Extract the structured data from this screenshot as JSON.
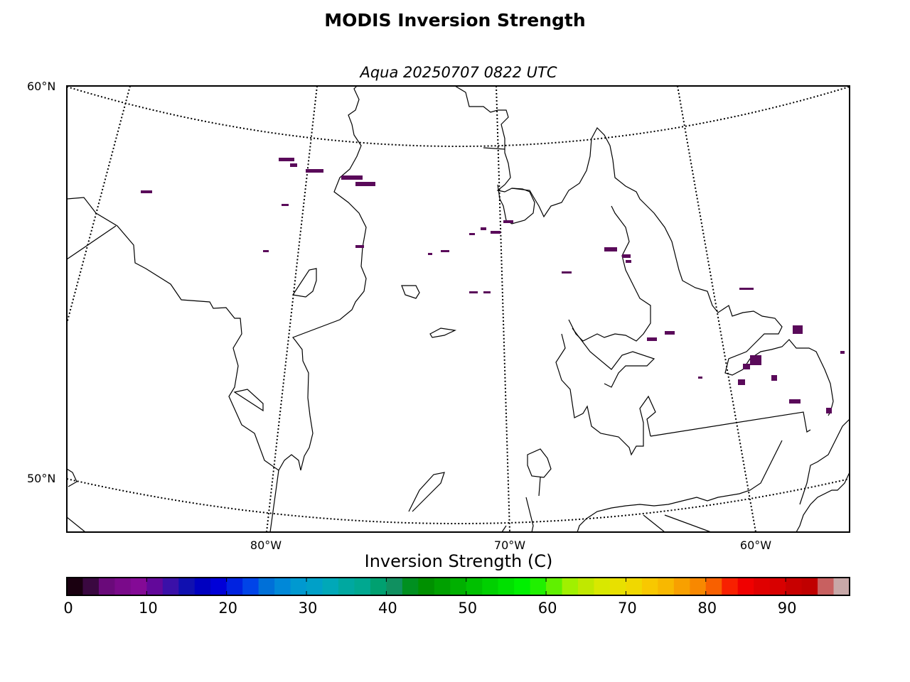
{
  "title": "MODIS Inversion Strength",
  "subtitle": "Aqua 20250707 0822 UTC",
  "map": {
    "lat_labels": [
      "60°N",
      "50°N"
    ],
    "lon_labels": [
      "80°W",
      "70°W",
      "60°W"
    ],
    "coastline_color": "#000000",
    "graticule_style": "dotted",
    "pixel_color": "#5a0a5a"
  },
  "colorbar": {
    "label": "Inversion Strength (C)",
    "range": [
      0,
      98
    ],
    "tick_labels": [
      "0",
      "10",
      "20",
      "30",
      "40",
      "50",
      "60",
      "70",
      "80",
      "90"
    ],
    "colors": [
      "#1a0010",
      "#3a0840",
      "#6a0a7a",
      "#7a0a8a",
      "#840a96",
      "#62089a",
      "#3a10a8",
      "#1010b0",
      "#0000c0",
      "#0000d8",
      "#0022e0",
      "#0044e8",
      "#0070d8",
      "#0088d8",
      "#0099d0",
      "#00a0c8",
      "#00a8b8",
      "#00a8a0",
      "#00a890",
      "#00a070",
      "#109060",
      "#009020",
      "#009000",
      "#00a000",
      "#00b000",
      "#00c000",
      "#00d000",
      "#00e000",
      "#00f000",
      "#20f000",
      "#60f000",
      "#a0f000",
      "#c0e800",
      "#d8e800",
      "#e8e000",
      "#f0d800",
      "#f8c800",
      "#f8b800",
      "#f8a000",
      "#f88800",
      "#f86000",
      "#f82000",
      "#f00000",
      "#e00000",
      "#d80000",
      "#c80000",
      "#c00000",
      "#c86060",
      "#c8a8a8"
    ]
  }
}
